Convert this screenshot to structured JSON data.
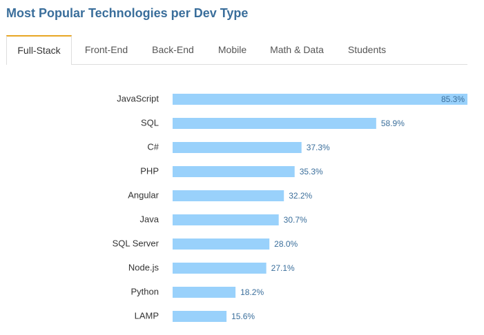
{
  "header": {
    "title": "Most Popular Technologies per Dev Type"
  },
  "tabs": [
    {
      "label": "Full-Stack",
      "active": true
    },
    {
      "label": "Front-End",
      "active": false
    },
    {
      "label": "Back-End",
      "active": false
    },
    {
      "label": "Mobile",
      "active": false
    },
    {
      "label": "Math & Data",
      "active": false
    },
    {
      "label": "Students",
      "active": false
    }
  ],
  "colors": {
    "bar": "#99d1fb",
    "title": "#3a6e9b",
    "active_tab_accent": "#e8a522"
  },
  "chart_data": {
    "type": "bar",
    "orientation": "horizontal",
    "categories": [
      "JavaScript",
      "SQL",
      "C#",
      "PHP",
      "Angular",
      "Java",
      "SQL Server",
      "Node.js",
      "Python",
      "LAMP"
    ],
    "values": [
      85.3,
      58.9,
      37.3,
      35.3,
      32.2,
      30.7,
      28.0,
      27.1,
      18.2,
      15.6
    ],
    "value_labels": [
      "85.3%",
      "58.9%",
      "37.3%",
      "35.3%",
      "32.2%",
      "30.7%",
      "28.0%",
      "27.1%",
      "18.2%",
      "15.6%"
    ],
    "title": "Most Popular Technologies per Dev Type",
    "xlabel": "",
    "ylabel": "",
    "xlim": [
      0,
      85.3
    ],
    "grid": false
  }
}
